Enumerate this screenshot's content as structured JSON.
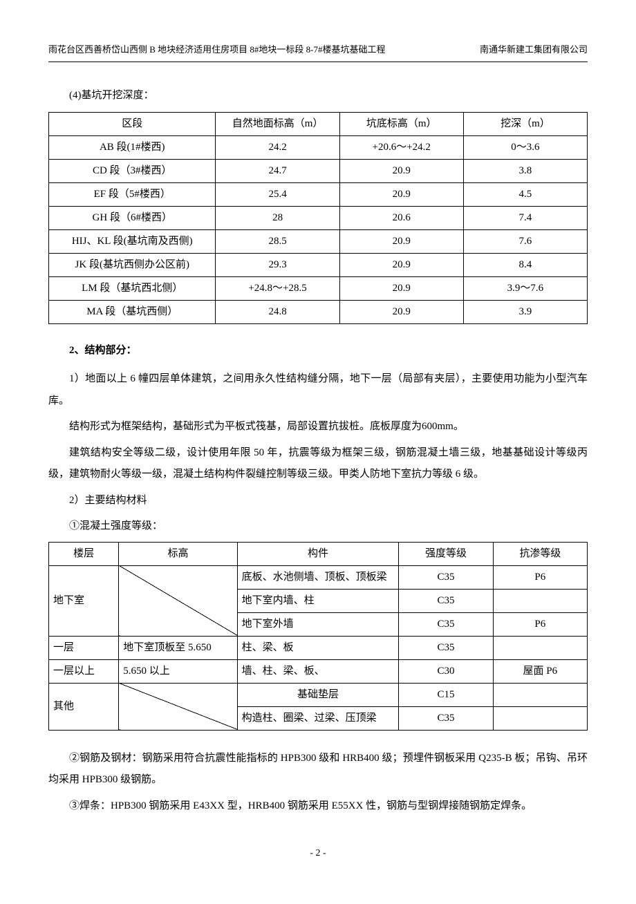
{
  "header": {
    "left": "雨花台区西善桥岱山西侧 B 地块经济适用住房项目 8#地块一标段 8-7#楼基坑基础工程",
    "right": "南通华新建工集团有限公司"
  },
  "section4_title": "(4)基坑开挖深度：",
  "table1": {
    "columns": [
      "区段",
      "自然地面标高（m）",
      "坑底标高（m）",
      "挖深（m）"
    ],
    "col_widths": [
      "31%",
      "23%",
      "23%",
      "23%"
    ],
    "rows": [
      [
        "AB 段(1#楼西)",
        "24.2",
        "+20.6～+24.2",
        "0～3.6"
      ],
      [
        "CD 段（3#楼西）",
        "24.7",
        "20.9",
        "3.8"
      ],
      [
        "EF 段（5#楼西）",
        "25.4",
        "20.9",
        "4.5"
      ],
      [
        "GH 段（6#楼西）",
        "28",
        "20.6",
        "7.4"
      ],
      [
        "HIJ、KL 段(基坑南及西侧)",
        "28.5",
        "20.9",
        "7.6"
      ],
      [
        "JK 段(基坑西侧办公区前)",
        "29.3",
        "20.9",
        "8.4"
      ],
      [
        "LM 段（基坑西北侧）",
        "+24.8～+28.5",
        "20.9",
        "3.9～7.6"
      ],
      [
        "MA 段（基坑西侧）",
        "24.8",
        "20.9",
        "3.9"
      ]
    ]
  },
  "structure": {
    "title": "2、结构部分：",
    "p1": "1）地面以上 6 幢四层单体建筑，之间用永久性结构缝分隔，地下一层（局部有夹层），主要使用功能为小型汽车库。",
    "p2": "结构形式为框架结构，基础形式为平板式筏基，局部设置抗拔桩。底板厚度为600mm。",
    "p3": "建筑结构安全等级二级，设计使用年限 50 年，抗震等级为框架三级，钢筋混凝土墙三级，地基基础设计等级丙级，建筑物耐火等级一级，混凝土结构构件裂缝控制等级三级。甲类人防地下室抗力等级 6 级。",
    "p4": "2）主要结构材料",
    "p5": "①混凝土强度等级：",
    "p6": "②钢筋及钢材：钢筋采用符合抗震性能指标的 HPB300 级和 HRB400 级；预埋件钢板采用 Q235-B 板；吊钩、吊环均采用 HPB300 级钢筋。",
    "p7": "③焊条：HPB300 钢筋采用 E43XX 型，HRB400 钢筋采用 E55XX 性，钢筋与型钢焊接随钢筋定焊条。"
  },
  "table2": {
    "columns": [
      "楼层",
      "标高",
      "构件",
      "强度等级",
      "抗渗等级"
    ],
    "col_widths": [
      "13%",
      "22%",
      "30%",
      "17.5%",
      "17.5%"
    ],
    "rows": [
      {
        "floor": "地下室",
        "elevation_diagonal": true,
        "component": "底板、水池侧墙、顶板、顶板梁",
        "grade": "C35",
        "perm": "P6"
      },
      {
        "component": "地下室内墙、柱",
        "grade": "C35",
        "perm": ""
      },
      {
        "component": "地下室外墙",
        "grade": "C35",
        "perm": "P6"
      },
      {
        "floor": "一层",
        "elevation": "地下室顶板至 5.650",
        "component": "柱、梁、板",
        "grade": "C35",
        "perm": ""
      },
      {
        "floor": "一层以上",
        "elevation": "5.650 以上",
        "component": "墙、柱、梁、板、",
        "grade": "C30",
        "perm": "屋面 P6"
      },
      {
        "floor": "其他",
        "elevation_diagonal": true,
        "component": "基础垫层",
        "grade": "C15",
        "perm": ""
      },
      {
        "component": "构造柱、圈梁、过梁、压顶梁",
        "grade": "C35",
        "perm": ""
      }
    ]
  },
  "page_number": "- 2 -"
}
